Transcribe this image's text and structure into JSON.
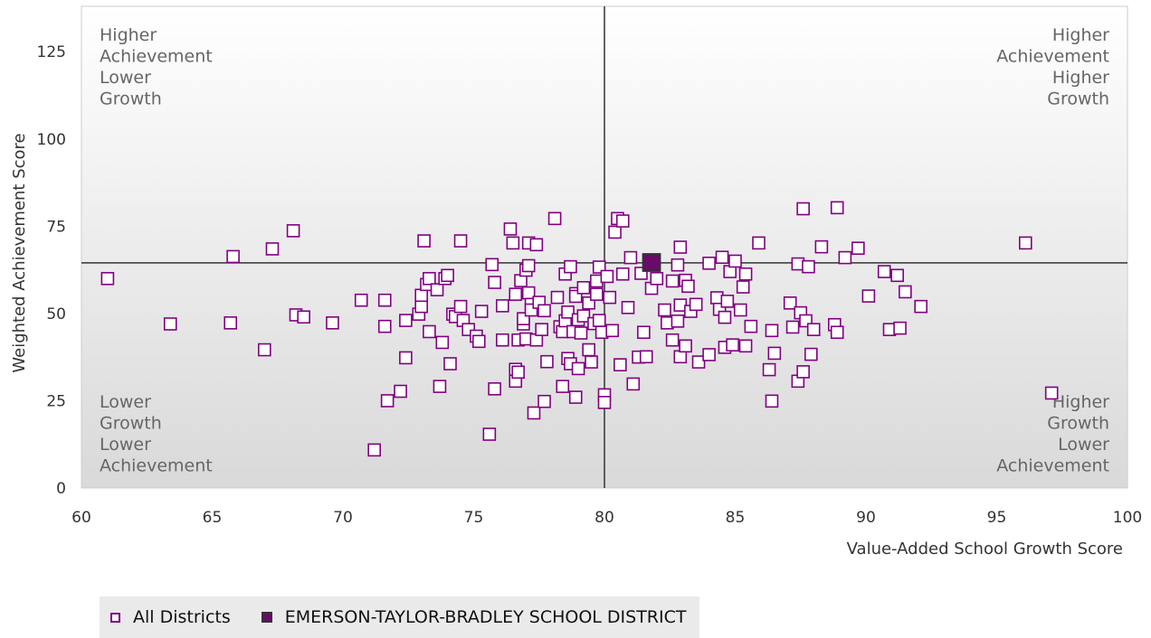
{
  "chart_data": {
    "type": "scatter",
    "xlabel": "Value-Added School Growth Score",
    "ylabel": "Weighted Achievement Score",
    "xlim": [
      60,
      100
    ],
    "ylim": [
      0,
      138
    ],
    "xticks": [
      60,
      65,
      70,
      75,
      80,
      85,
      90,
      95,
      100
    ],
    "yticks": [
      0,
      25,
      50,
      75,
      100,
      125
    ],
    "reference_lines": {
      "x": 80,
      "y": 64.5
    },
    "quadrant_labels": {
      "top_left": [
        "Higher",
        "Achievement",
        "Lower",
        "Growth"
      ],
      "top_right": [
        "Higher",
        "Achievement",
        "Higher",
        "Growth"
      ],
      "bottom_left": [
        "Lower",
        "Growth",
        "Lower",
        "Achievement"
      ],
      "bottom_right": [
        "Higher",
        "Growth",
        "Lower",
        "Achievement"
      ]
    },
    "colors": {
      "all": "#800080",
      "highlight": "#6a0a6a"
    },
    "series": [
      {
        "name": "All Districts",
        "marker": "open-square",
        "points": [
          [
            61,
            60
          ],
          [
            63.4,
            47
          ],
          [
            65.7,
            47.3
          ],
          [
            65.8,
            66.3
          ],
          [
            67,
            39.6
          ],
          [
            67.3,
            68.5
          ],
          [
            68.1,
            73.7
          ],
          [
            68.2,
            49.6
          ],
          [
            68.5,
            49
          ],
          [
            69.6,
            47.3
          ],
          [
            70.7,
            53.8
          ],
          [
            71.2,
            10.9
          ],
          [
            71.6,
            53.8
          ],
          [
            71.6,
            46.3
          ],
          [
            71.7,
            25
          ],
          [
            72.2,
            27.7
          ],
          [
            72.4,
            48
          ],
          [
            72.4,
            37.3
          ],
          [
            72.9,
            49.8
          ],
          [
            73,
            52
          ],
          [
            73,
            55.2
          ],
          [
            73.1,
            70.8
          ],
          [
            73.2,
            58.3
          ],
          [
            73.3,
            60
          ],
          [
            73.3,
            44.8
          ],
          [
            73.6,
            56.8
          ],
          [
            73.7,
            29.1
          ],
          [
            73.8,
            41.7
          ],
          [
            73.9,
            60
          ],
          [
            74,
            60.9
          ],
          [
            74.1,
            35.6
          ],
          [
            74.2,
            49.8
          ],
          [
            74.3,
            49.1
          ],
          [
            74.5,
            52
          ],
          [
            74.5,
            70.8
          ],
          [
            74.6,
            48
          ],
          [
            74.8,
            45.4
          ],
          [
            75.1,
            43.5
          ],
          [
            75.2,
            42
          ],
          [
            75.3,
            50.6
          ],
          [
            75.6,
            15.4
          ],
          [
            75.7,
            64
          ],
          [
            75.8,
            28.4
          ],
          [
            75.8,
            58.9
          ],
          [
            76.1,
            42.4
          ],
          [
            76.1,
            52.2
          ],
          [
            76.4,
            74.2
          ],
          [
            76.5,
            70.2
          ],
          [
            76.6,
            55.5
          ],
          [
            76.6,
            34
          ],
          [
            76.6,
            30.6
          ],
          [
            76.7,
            42.4
          ],
          [
            76.7,
            33.2
          ],
          [
            76.8,
            59.4
          ],
          [
            76.9,
            47
          ],
          [
            76.9,
            48.5
          ],
          [
            77,
            62.4
          ],
          [
            77,
            42.7
          ],
          [
            77.1,
            55.9
          ],
          [
            77.1,
            70.2
          ],
          [
            77.1,
            63.7
          ],
          [
            77.2,
            52.6
          ],
          [
            77.2,
            51
          ],
          [
            77.3,
            21.5
          ],
          [
            77.4,
            42.4
          ],
          [
            77.4,
            69.7
          ],
          [
            77.5,
            53.2
          ],
          [
            77.6,
            45.4
          ],
          [
            77.7,
            50.8
          ],
          [
            77.7,
            24.8
          ],
          [
            77.8,
            36.2
          ],
          [
            78.1,
            77.2
          ],
          [
            78.2,
            54.6
          ],
          [
            78.3,
            46.2
          ],
          [
            78.4,
            29.1
          ],
          [
            78.4,
            44.8
          ],
          [
            78.5,
            47.9
          ],
          [
            78.5,
            61.3
          ],
          [
            78.6,
            50.4
          ],
          [
            78.6,
            37.1
          ],
          [
            78.7,
            35.6
          ],
          [
            78.7,
            63.4
          ],
          [
            78.8,
            44.8
          ],
          [
            78.9,
            55.7
          ],
          [
            78.9,
            26
          ],
          [
            78.9,
            54.9
          ],
          [
            79,
            34.2
          ],
          [
            79,
            48.2
          ],
          [
            79.1,
            44.4
          ],
          [
            79.2,
            57.4
          ],
          [
            79.2,
            49.3
          ],
          [
            79.4,
            39.6
          ],
          [
            79.4,
            53
          ],
          [
            79.5,
            36.1
          ],
          [
            79.6,
            47.1
          ],
          [
            79.7,
            55.5
          ],
          [
            79.7,
            59.3
          ],
          [
            79.8,
            48
          ],
          [
            79.8,
            63.3
          ],
          [
            79.9,
            44.6
          ],
          [
            80,
            26.7
          ],
          [
            80,
            24.5
          ],
          [
            80.1,
            60.6
          ],
          [
            80.2,
            54.6
          ],
          [
            80.3,
            45.1
          ],
          [
            80.4,
            73.3
          ],
          [
            80.5,
            77.2
          ],
          [
            80.6,
            35.3
          ],
          [
            80.7,
            61.3
          ],
          [
            80.7,
            76.5
          ],
          [
            80.9,
            51.7
          ],
          [
            81,
            66
          ],
          [
            81.1,
            29.8
          ],
          [
            81.3,
            37.5
          ],
          [
            81.4,
            61.5
          ],
          [
            81.5,
            44.6
          ],
          [
            81.6,
            37.6
          ],
          [
            81.8,
            57.2
          ],
          [
            82,
            60
          ],
          [
            82.3,
            51
          ],
          [
            82.4,
            47.3
          ],
          [
            82.6,
            42.4
          ],
          [
            82.6,
            59.3
          ],
          [
            82.8,
            47.8
          ],
          [
            82.8,
            63.9
          ],
          [
            82.9,
            69
          ],
          [
            82.9,
            52.4
          ],
          [
            82.9,
            37.6
          ],
          [
            83.1,
            40.7
          ],
          [
            83.1,
            59.5
          ],
          [
            83.2,
            57.8
          ],
          [
            83.3,
            50.6
          ],
          [
            83.5,
            52.6
          ],
          [
            83.6,
            36.1
          ],
          [
            84,
            38.2
          ],
          [
            84,
            64.4
          ],
          [
            84.3,
            54.5
          ],
          [
            84.4,
            51.2
          ],
          [
            84.5,
            66.1
          ],
          [
            84.6,
            48.9
          ],
          [
            84.6,
            40.3
          ],
          [
            84.7,
            53.5
          ],
          [
            84.8,
            62
          ],
          [
            84.9,
            41
          ],
          [
            85,
            65
          ],
          [
            85.2,
            51
          ],
          [
            85.3,
            57.6
          ],
          [
            85.4,
            61.3
          ],
          [
            85.4,
            40.7
          ],
          [
            85.6,
            46.3
          ],
          [
            85.9,
            70.2
          ],
          [
            86.3,
            33.9
          ],
          [
            86.4,
            45.1
          ],
          [
            86.4,
            24.9
          ],
          [
            86.5,
            38.6
          ],
          [
            87.1,
            53
          ],
          [
            87.2,
            46.1
          ],
          [
            87.4,
            30.6
          ],
          [
            87.4,
            64.2
          ],
          [
            87.5,
            50.2
          ],
          [
            87.6,
            33.3
          ],
          [
            87.6,
            80
          ],
          [
            87.7,
            47.9
          ],
          [
            87.8,
            63.4
          ],
          [
            87.9,
            38.3
          ],
          [
            88,
            45.4
          ],
          [
            88.3,
            69.1
          ],
          [
            88.8,
            46.8
          ],
          [
            88.9,
            80.3
          ],
          [
            88.9,
            44.6
          ],
          [
            89.2,
            66
          ],
          [
            89.7,
            68.7
          ],
          [
            90.1,
            55
          ],
          [
            90.7,
            62
          ],
          [
            90.9,
            45.4
          ],
          [
            91.2,
            60.9
          ],
          [
            91.3,
            45.8
          ],
          [
            91.5,
            56.2
          ],
          [
            92.1,
            52
          ],
          [
            96.1,
            70.2
          ],
          [
            97.1,
            27.2
          ]
        ]
      },
      {
        "name": "EMERSON-TAYLOR-BRADLEY SCHOOL DISTRICT",
        "marker": "filled-square",
        "points": [
          [
            81.8,
            64.6
          ]
        ]
      }
    ]
  }
}
